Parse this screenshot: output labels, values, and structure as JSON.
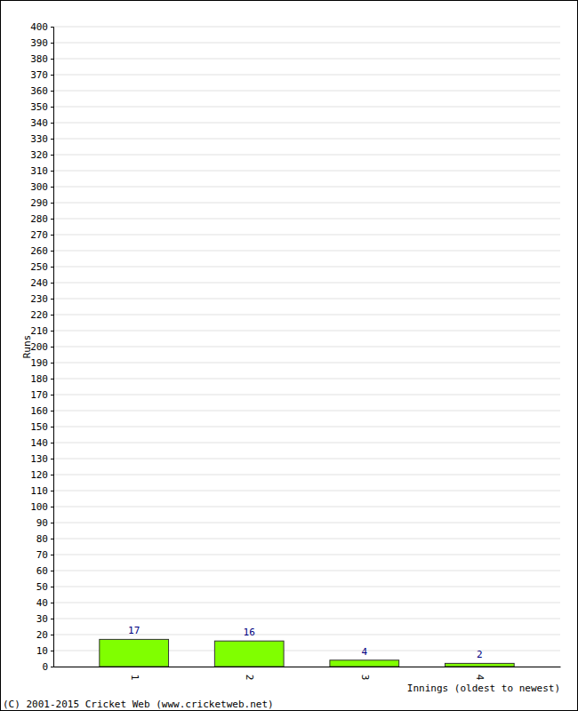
{
  "chart_data": {
    "type": "bar",
    "x_label": "Innings (oldest to newest)",
    "y_label": "Runs",
    "annotations": [
      "(C) 2001-2015 Cricket Web (www.cricketweb.net)"
    ],
    "categories": [
      "1",
      "2",
      "3",
      "4"
    ],
    "values": [
      17,
      16,
      4,
      2
    ],
    "color": "#80ff00",
    "ylim": [
      0,
      400
    ],
    "yticks": [
      0,
      10,
      20,
      30,
      40,
      50,
      60,
      70,
      80,
      90,
      100,
      110,
      120,
      130,
      140,
      150,
      160,
      170,
      180,
      190,
      200,
      210,
      220,
      230,
      240,
      250,
      260,
      270,
      280,
      290,
      300,
      310,
      320,
      330,
      340,
      350,
      360,
      370,
      380,
      390,
      400
    ],
    "grid": true,
    "data_labels": true
  }
}
